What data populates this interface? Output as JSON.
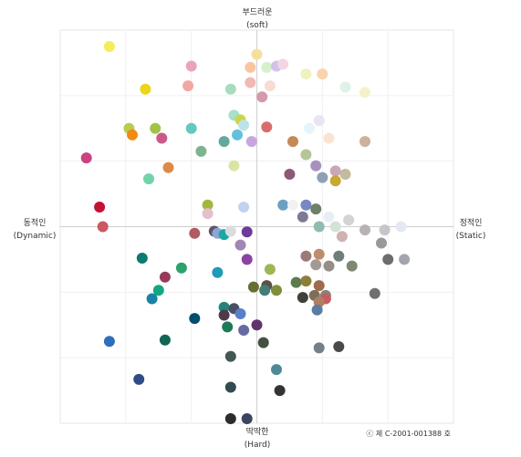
{
  "chart_data": {
    "type": "scatter",
    "xlim": [
      -3,
      3
    ],
    "ylim": [
      -3,
      3
    ],
    "grid": true,
    "axis_labels": {
      "top": {
        "ko": "부드러운",
        "en": "(soft)"
      },
      "bottom": {
        "ko": "딱딱한",
        "en": "(Hard)"
      },
      "left": {
        "ko": "동적인",
        "en": "(Dynamic)"
      },
      "right": {
        "ko": "정적인",
        "en": "(Static)"
      }
    },
    "copyright": "ⓒ 제 C-2001-001388 호",
    "points": [
      {
        "x": -2.25,
        "y": 2.75,
        "color": "#f4ec5a"
      },
      {
        "x": -1.0,
        "y": 2.45,
        "color": "#eba3bd"
      },
      {
        "x": -1.7,
        "y": 2.1,
        "color": "#ecd51a"
      },
      {
        "x": -1.05,
        "y": 2.15,
        "color": "#f1a7a3"
      },
      {
        "x": -0.4,
        "y": 2.1,
        "color": "#a7dcbc"
      },
      {
        "x": -0.1,
        "y": 2.2,
        "color": "#f1b9b3"
      },
      {
        "x": 0.0,
        "y": 2.63,
        "color": "#f5df9a"
      },
      {
        "x": -0.1,
        "y": 2.43,
        "color": "#f9c59f"
      },
      {
        "x": 0.15,
        "y": 2.43,
        "color": "#d5f0cd"
      },
      {
        "x": 0.3,
        "y": 2.45,
        "color": "#d1c2e8"
      },
      {
        "x": 0.4,
        "y": 2.48,
        "color": "#f4d5e4"
      },
      {
        "x": 0.2,
        "y": 2.15,
        "color": "#f8dcd3"
      },
      {
        "x": 0.08,
        "y": 1.98,
        "color": "#d39aaa"
      },
      {
        "x": 0.75,
        "y": 2.33,
        "color": "#eef3bf"
      },
      {
        "x": 1.0,
        "y": 2.33,
        "color": "#f9d4ab"
      },
      {
        "x": 1.35,
        "y": 2.13,
        "color": "#ddf3e7"
      },
      {
        "x": 1.65,
        "y": 2.05,
        "color": "#f5f2c8"
      },
      {
        "x": -0.35,
        "y": 1.7,
        "color": "#a7e0cc"
      },
      {
        "x": -0.25,
        "y": 1.63,
        "color": "#cbd64a"
      },
      {
        "x": -0.2,
        "y": 1.55,
        "color": "#bde2e8"
      },
      {
        "x": 0.15,
        "y": 1.52,
        "color": "#d86e6c"
      },
      {
        "x": 0.95,
        "y": 1.62,
        "color": "#e8e4f1"
      },
      {
        "x": 0.8,
        "y": 1.5,
        "color": "#e5f4fa"
      },
      {
        "x": 1.1,
        "y": 1.35,
        "color": "#fbe3d2"
      },
      {
        "x": -1.95,
        "y": 1.5,
        "color": "#bccb4e"
      },
      {
        "x": -1.55,
        "y": 1.5,
        "color": "#a2c249"
      },
      {
        "x": -1.9,
        "y": 1.4,
        "color": "#f08a14"
      },
      {
        "x": -1.45,
        "y": 1.35,
        "color": "#c95a88"
      },
      {
        "x": -1.0,
        "y": 1.5,
        "color": "#62c9be"
      },
      {
        "x": -0.5,
        "y": 1.3,
        "color": "#65a89c"
      },
      {
        "x": -0.3,
        "y": 1.4,
        "color": "#64c0de"
      },
      {
        "x": -0.08,
        "y": 1.3,
        "color": "#c7a6df"
      },
      {
        "x": -0.85,
        "y": 1.15,
        "color": "#7eb38f"
      },
      {
        "x": 0.55,
        "y": 1.3,
        "color": "#c68a57"
      },
      {
        "x": 0.75,
        "y": 1.1,
        "color": "#b6c597"
      },
      {
        "x": 1.65,
        "y": 1.3,
        "color": "#cdb19d"
      },
      {
        "x": -2.6,
        "y": 1.05,
        "color": "#c8447f"
      },
      {
        "x": -1.35,
        "y": 0.9,
        "color": "#de8a47"
      },
      {
        "x": -0.35,
        "y": 0.93,
        "color": "#dce3a6"
      },
      {
        "x": 0.5,
        "y": 0.8,
        "color": "#8c5a77"
      },
      {
        "x": 0.9,
        "y": 0.93,
        "color": "#a690bf"
      },
      {
        "x": 1.2,
        "y": 0.85,
        "color": "#c9a7b4"
      },
      {
        "x": 1.0,
        "y": 0.75,
        "color": "#8fa0b5"
      },
      {
        "x": 1.2,
        "y": 0.7,
        "color": "#c9a833"
      },
      {
        "x": 1.35,
        "y": 0.8,
        "color": "#c4ba9c"
      },
      {
        "x": -1.65,
        "y": 0.73,
        "color": "#72d3aa"
      },
      {
        "x": -2.4,
        "y": 0.3,
        "color": "#c31235"
      },
      {
        "x": -0.75,
        "y": 0.33,
        "color": "#9fb93d"
      },
      {
        "x": -0.75,
        "y": 0.2,
        "color": "#e4c0cb"
      },
      {
        "x": -0.2,
        "y": 0.3,
        "color": "#c1d2f0"
      },
      {
        "x": 0.4,
        "y": 0.33,
        "color": "#6d9fc2"
      },
      {
        "x": 0.55,
        "y": 0.33,
        "color": "#f2f2f2"
      },
      {
        "x": 0.75,
        "y": 0.33,
        "color": "#7788c4"
      },
      {
        "x": 0.9,
        "y": 0.27,
        "color": "#6e7f6a"
      },
      {
        "x": 0.7,
        "y": 0.15,
        "color": "#7d7a94"
      },
      {
        "x": 1.1,
        "y": 0.15,
        "color": "#eaeef2"
      },
      {
        "x": 1.4,
        "y": 0.1,
        "color": "#d3d3d3"
      },
      {
        "x": -2.35,
        "y": 0.0,
        "color": "#ca5964"
      },
      {
        "x": -0.95,
        "y": -0.1,
        "color": "#b05a61"
      },
      {
        "x": -0.65,
        "y": -0.07,
        "color": "#5d5566"
      },
      {
        "x": -0.6,
        "y": -0.1,
        "color": "#8aa7d4"
      },
      {
        "x": -0.5,
        "y": -0.12,
        "color": "#1ba7a4"
      },
      {
        "x": -0.4,
        "y": -0.07,
        "color": "#dddcdd"
      },
      {
        "x": -0.15,
        "y": -0.08,
        "color": "#6f3a98"
      },
      {
        "x": -0.25,
        "y": -0.28,
        "color": "#a287b2"
      },
      {
        "x": -0.15,
        "y": -0.5,
        "color": "#8c42a2"
      },
      {
        "x": 0.95,
        "y": 0.0,
        "color": "#8fbbb0"
      },
      {
        "x": 1.2,
        "y": 0.0,
        "color": "#d3e2d5"
      },
      {
        "x": 1.3,
        "y": -0.15,
        "color": "#d1b1b1"
      },
      {
        "x": 1.65,
        "y": -0.05,
        "color": "#b8b2b2"
      },
      {
        "x": 1.95,
        "y": -0.05,
        "color": "#c5c5ca"
      },
      {
        "x": 2.2,
        "y": 0.0,
        "color": "#e4e8f4"
      },
      {
        "x": 1.9,
        "y": -0.25,
        "color": "#989897"
      },
      {
        "x": 0.75,
        "y": -0.45,
        "color": "#9b7b76"
      },
      {
        "x": 0.95,
        "y": -0.42,
        "color": "#bf8d6e"
      },
      {
        "x": 0.9,
        "y": -0.58,
        "color": "#a39a94"
      },
      {
        "x": 1.25,
        "y": -0.45,
        "color": "#6e7f79"
      },
      {
        "x": 1.45,
        "y": -0.6,
        "color": "#7e8870"
      },
      {
        "x": 2.0,
        "y": -0.5,
        "color": "#6d6d6d"
      },
      {
        "x": 2.25,
        "y": -0.5,
        "color": "#a2a5ab"
      },
      {
        "x": 1.1,
        "y": -0.6,
        "color": "#948e87"
      },
      {
        "x": -1.75,
        "y": -0.48,
        "color": "#0c7b72"
      },
      {
        "x": -1.15,
        "y": -0.63,
        "color": "#2ba36e"
      },
      {
        "x": -0.6,
        "y": -0.7,
        "color": "#209ab8"
      },
      {
        "x": 0.2,
        "y": -0.65,
        "color": "#9fb752"
      },
      {
        "x": -1.4,
        "y": -0.77,
        "color": "#973a59"
      },
      {
        "x": -1.5,
        "y": -0.97,
        "color": "#13a781"
      },
      {
        "x": -1.6,
        "y": -1.1,
        "color": "#1983a5"
      },
      {
        "x": -0.05,
        "y": -0.92,
        "color": "#696d35"
      },
      {
        "x": 0.15,
        "y": -0.9,
        "color": "#5a5246"
      },
      {
        "x": 0.3,
        "y": -0.97,
        "color": "#818e3c"
      },
      {
        "x": 0.12,
        "y": -0.97,
        "color": "#437e76"
      },
      {
        "x": 0.6,
        "y": -0.85,
        "color": "#5d7a4e"
      },
      {
        "x": 0.75,
        "y": -0.83,
        "color": "#8b7f3a"
      },
      {
        "x": 0.95,
        "y": -0.9,
        "color": "#9e6b4e"
      },
      {
        "x": 0.7,
        "y": -1.08,
        "color": "#3e4236"
      },
      {
        "x": 0.88,
        "y": -1.05,
        "color": "#7b6f5b"
      },
      {
        "x": 1.05,
        "y": -1.05,
        "color": "#7f8877"
      },
      {
        "x": 1.05,
        "y": -1.1,
        "color": "#ca5b66"
      },
      {
        "x": 0.95,
        "y": -1.15,
        "color": "#b07e60"
      },
      {
        "x": 1.8,
        "y": -1.02,
        "color": "#707070"
      },
      {
        "x": 0.92,
        "y": -1.27,
        "color": "#5b7da2"
      },
      {
        "x": -0.5,
        "y": -1.23,
        "color": "#238478"
      },
      {
        "x": -0.35,
        "y": -1.25,
        "color": "#4b4f66"
      },
      {
        "x": -0.5,
        "y": -1.35,
        "color": "#4e3a49"
      },
      {
        "x": -0.25,
        "y": -1.33,
        "color": "#5a7fc7"
      },
      {
        "x": -0.95,
        "y": -1.4,
        "color": "#004e6e"
      },
      {
        "x": -0.45,
        "y": -1.53,
        "color": "#1b7a57"
      },
      {
        "x": -0.2,
        "y": -1.58,
        "color": "#666aa3"
      },
      {
        "x": 0.0,
        "y": -1.5,
        "color": "#60336c"
      },
      {
        "x": -2.25,
        "y": -1.75,
        "color": "#2f6ebc"
      },
      {
        "x": -1.4,
        "y": -1.73,
        "color": "#116553"
      },
      {
        "x": 0.1,
        "y": -1.77,
        "color": "#445142"
      },
      {
        "x": 0.95,
        "y": -1.85,
        "color": "#747f87"
      },
      {
        "x": 1.25,
        "y": -1.83,
        "color": "#4a4a4a"
      },
      {
        "x": -0.4,
        "y": -1.98,
        "color": "#445754"
      },
      {
        "x": 0.3,
        "y": -2.18,
        "color": "#4f8897"
      },
      {
        "x": -1.8,
        "y": -2.33,
        "color": "#2f4c86"
      },
      {
        "x": -0.4,
        "y": -2.45,
        "color": "#304a52"
      },
      {
        "x": 0.35,
        "y": -2.5,
        "color": "#333333"
      },
      {
        "x": -0.4,
        "y": -2.93,
        "color": "#2c2c2c"
      },
      {
        "x": -0.15,
        "y": -2.93,
        "color": "#3a4560"
      }
    ]
  }
}
